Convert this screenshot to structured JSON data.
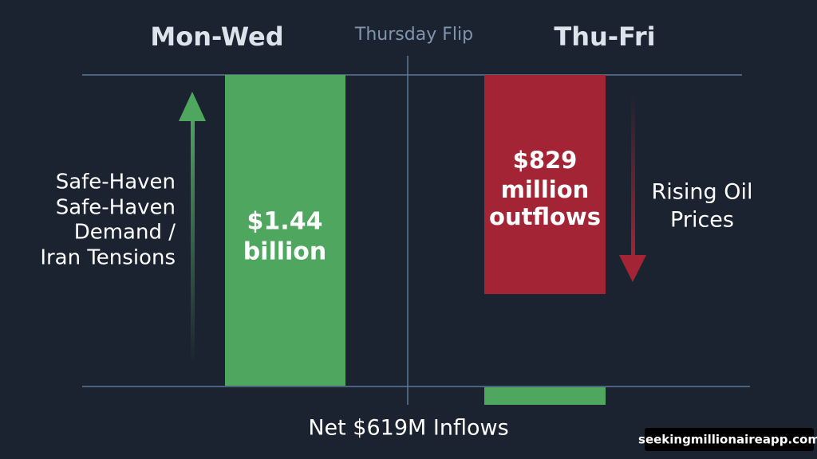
{
  "header": {
    "left_title": "Mon-Wed",
    "center_title": "Thursday Flip",
    "right_title": "Thu-Fri"
  },
  "left_label": {
    "lines": [
      "Safe-Haven",
      "Safe-Haven",
      "Demand /",
      "Iran Tensions"
    ]
  },
  "inflow_bar": {
    "lines": [
      "$1.44",
      "billion"
    ]
  },
  "outflow_bar": {
    "lines": [
      "$829",
      "million",
      "outflows"
    ]
  },
  "right_label": {
    "lines": [
      "Rising Oil",
      "Prices"
    ]
  },
  "footer": {
    "net": "Net $619M Inflows"
  },
  "watermark": "seekingmillionaireapp.com"
}
